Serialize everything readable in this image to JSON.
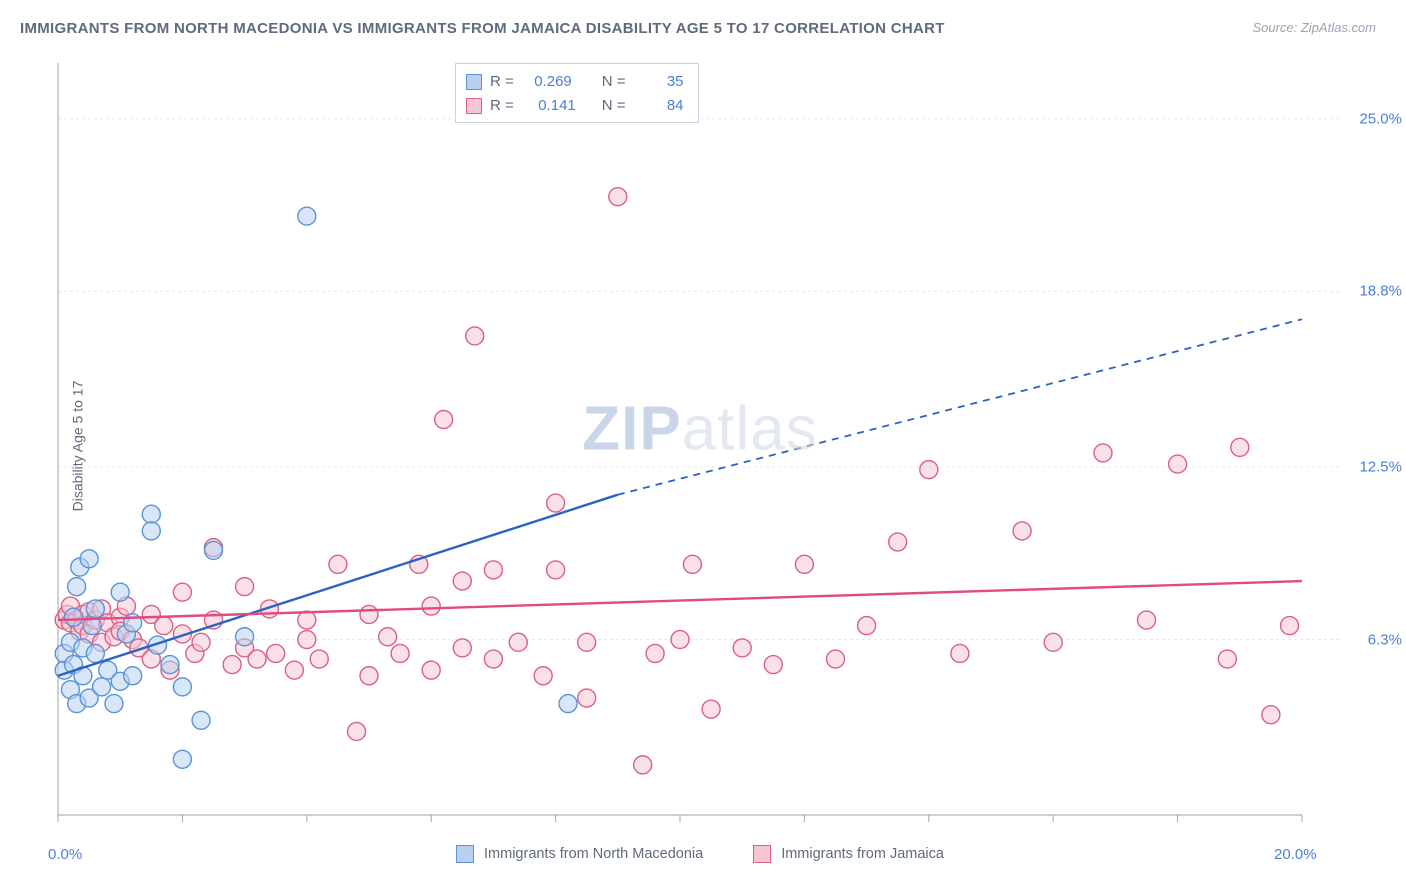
{
  "title": "IMMIGRANTS FROM NORTH MACEDONIA VS IMMIGRANTS FROM JAMAICA DISABILITY AGE 5 TO 17 CORRELATION CHART",
  "source": "Source: ZipAtlas.com",
  "ylabel": "Disability Age 5 to 17",
  "watermark_a": "ZIP",
  "watermark_b": "atlas",
  "chart": {
    "type": "scatter",
    "xlim": [
      0,
      20
    ],
    "ylim": [
      0,
      27
    ],
    "x_axis_labels": [
      {
        "v": 0,
        "text": "0.0%"
      },
      {
        "v": 20,
        "text": "20.0%"
      }
    ],
    "y_gridlines": [
      6.3,
      12.5,
      18.8,
      25.0
    ],
    "y_tick_labels": [
      "6.3%",
      "12.5%",
      "18.8%",
      "25.0%"
    ],
    "x_tick_marks": [
      0,
      2,
      4,
      6,
      8,
      10,
      12,
      14,
      16,
      18,
      20
    ],
    "background_color": "#ffffff",
    "grid_color": "#e6e9ee",
    "axis_color": "#9aa4b2",
    "marker_radius": 9,
    "marker_stroke_width": 1.4,
    "series": [
      {
        "name": "Immigrants from North Macedonia",
        "fill": "#b9d1f0",
        "stroke": "#5a93d6",
        "fill_opacity": 0.55,
        "stats": {
          "R": "0.269",
          "N": "35"
        },
        "trend": {
          "solid": {
            "x1": 0,
            "y1": 5.0,
            "x2": 9.0,
            "y2": 11.5
          },
          "dashed": {
            "x1": 9.0,
            "y1": 11.5,
            "x2": 20.0,
            "y2": 17.8
          },
          "color": "#2a63c2",
          "width": 2.4
        },
        "points": [
          [
            0.1,
            5.2
          ],
          [
            0.1,
            5.8
          ],
          [
            0.2,
            6.2
          ],
          [
            0.2,
            4.5
          ],
          [
            0.25,
            7.1
          ],
          [
            0.25,
            5.4
          ],
          [
            0.3,
            8.2
          ],
          [
            0.3,
            4.0
          ],
          [
            0.35,
            8.9
          ],
          [
            0.4,
            6.0
          ],
          [
            0.4,
            5.0
          ],
          [
            0.5,
            9.2
          ],
          [
            0.5,
            4.2
          ],
          [
            0.55,
            6.8
          ],
          [
            0.6,
            5.8
          ],
          [
            0.6,
            7.4
          ],
          [
            0.7,
            4.6
          ],
          [
            0.8,
            5.2
          ],
          [
            0.9,
            4.0
          ],
          [
            1.0,
            8.0
          ],
          [
            1.0,
            4.8
          ],
          [
            1.1,
            6.5
          ],
          [
            1.2,
            5.0
          ],
          [
            1.2,
            6.9
          ],
          [
            1.5,
            10.8
          ],
          [
            1.5,
            10.2
          ],
          [
            1.6,
            6.1
          ],
          [
            1.8,
            5.4
          ],
          [
            2.0,
            4.6
          ],
          [
            2.0,
            2.0
          ],
          [
            2.3,
            3.4
          ],
          [
            2.5,
            9.5
          ],
          [
            3.0,
            6.4
          ],
          [
            4.0,
            21.5
          ],
          [
            8.2,
            4.0
          ]
        ]
      },
      {
        "name": "Immigrants from Jamaica",
        "fill": "#f6c7d3",
        "stroke": "#db5f88",
        "fill_opacity": 0.55,
        "stats": {
          "R": "0.141",
          "N": "84"
        },
        "trend": {
          "solid": {
            "x1": 0,
            "y1": 7.0,
            "x2": 20.0,
            "y2": 8.4
          },
          "color": "#e24b7e",
          "width": 2.4
        },
        "points": [
          [
            0.1,
            7.0
          ],
          [
            0.15,
            7.2
          ],
          [
            0.2,
            6.9
          ],
          [
            0.2,
            7.5
          ],
          [
            0.3,
            7.0
          ],
          [
            0.35,
            6.6
          ],
          [
            0.4,
            7.2
          ],
          [
            0.4,
            6.8
          ],
          [
            0.5,
            6.5
          ],
          [
            0.5,
            7.3
          ],
          [
            0.6,
            7.0
          ],
          [
            0.7,
            6.2
          ],
          [
            0.7,
            7.4
          ],
          [
            0.8,
            6.9
          ],
          [
            0.9,
            6.4
          ],
          [
            1.0,
            7.1
          ],
          [
            1.0,
            6.6
          ],
          [
            1.1,
            7.5
          ],
          [
            1.2,
            6.3
          ],
          [
            1.3,
            6.0
          ],
          [
            1.5,
            5.6
          ],
          [
            1.5,
            7.2
          ],
          [
            1.7,
            6.8
          ],
          [
            1.8,
            5.2
          ],
          [
            2.0,
            6.5
          ],
          [
            2.0,
            8.0
          ],
          [
            2.2,
            5.8
          ],
          [
            2.3,
            6.2
          ],
          [
            2.5,
            7.0
          ],
          [
            2.5,
            9.6
          ],
          [
            2.8,
            5.4
          ],
          [
            3.0,
            6.0
          ],
          [
            3.0,
            8.2
          ],
          [
            3.2,
            5.6
          ],
          [
            3.4,
            7.4
          ],
          [
            3.5,
            5.8
          ],
          [
            3.8,
            5.2
          ],
          [
            4.0,
            6.3
          ],
          [
            4.0,
            7.0
          ],
          [
            4.2,
            5.6
          ],
          [
            4.5,
            9.0
          ],
          [
            4.8,
            3.0
          ],
          [
            5.0,
            5.0
          ],
          [
            5.0,
            7.2
          ],
          [
            5.3,
            6.4
          ],
          [
            5.5,
            5.8
          ],
          [
            5.8,
            9.0
          ],
          [
            6.0,
            7.5
          ],
          [
            6.0,
            5.2
          ],
          [
            6.2,
            14.2
          ],
          [
            6.5,
            6.0
          ],
          [
            6.5,
            8.4
          ],
          [
            6.7,
            17.2
          ],
          [
            7.0,
            5.6
          ],
          [
            7.0,
            8.8
          ],
          [
            7.4,
            6.2
          ],
          [
            7.8,
            5.0
          ],
          [
            8.0,
            11.2
          ],
          [
            8.0,
            8.8
          ],
          [
            8.5,
            6.2
          ],
          [
            8.5,
            4.2
          ],
          [
            9.0,
            22.2
          ],
          [
            9.4,
            1.8
          ],
          [
            9.6,
            5.8
          ],
          [
            10.0,
            6.3
          ],
          [
            10.2,
            9.0
          ],
          [
            10.5,
            3.8
          ],
          [
            11.0,
            6.0
          ],
          [
            11.5,
            5.4
          ],
          [
            12.0,
            9.0
          ],
          [
            12.5,
            5.6
          ],
          [
            13.0,
            6.8
          ],
          [
            13.5,
            9.8
          ],
          [
            14.0,
            12.4
          ],
          [
            14.5,
            5.8
          ],
          [
            15.5,
            10.2
          ],
          [
            16.0,
            6.2
          ],
          [
            16.8,
            13.0
          ],
          [
            17.5,
            7.0
          ],
          [
            18.0,
            12.6
          ],
          [
            18.8,
            5.6
          ],
          [
            19.0,
            13.2
          ],
          [
            19.5,
            3.6
          ],
          [
            19.8,
            6.8
          ]
        ]
      }
    ]
  },
  "legend": {
    "labels": [
      "Immigrants from North Macedonia",
      "Immigrants from Jamaica"
    ]
  }
}
